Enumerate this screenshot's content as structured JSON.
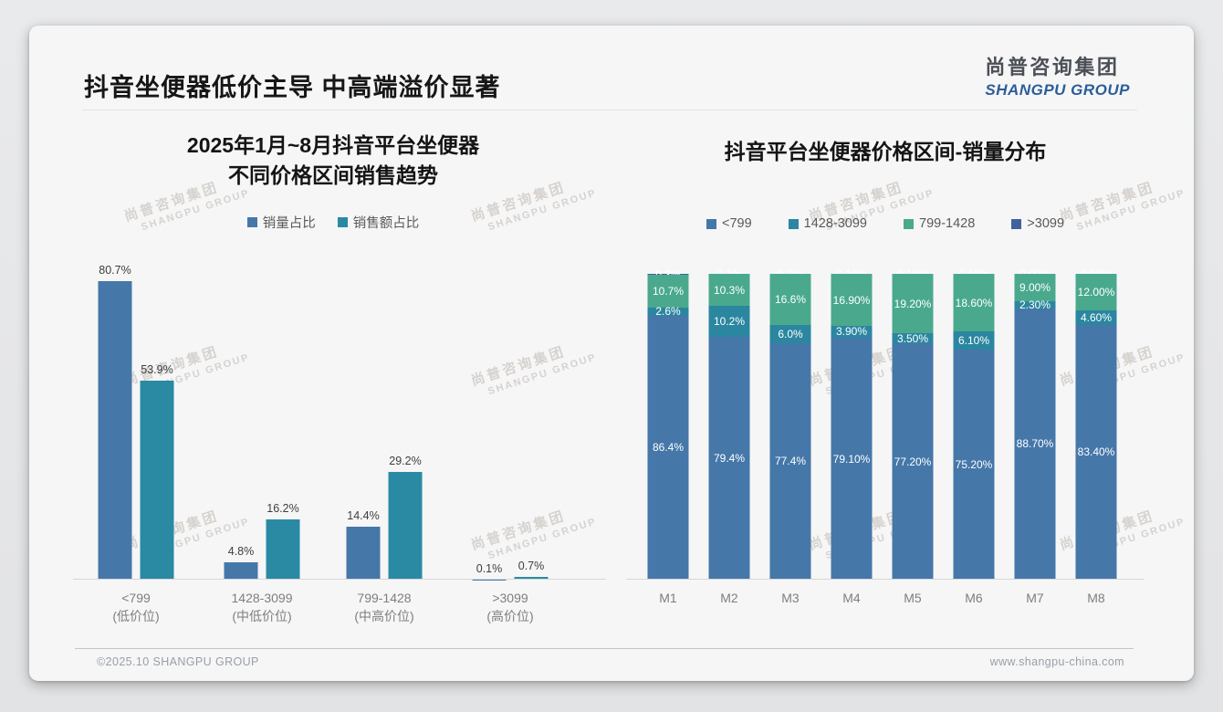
{
  "page": {
    "title": "抖音坐便器低价主导 中高端溢价显著"
  },
  "logo": {
    "cn": "尚普咨询集团",
    "en": "SHANGPU GROUP"
  },
  "watermark": {
    "cn": "尚普咨询集团",
    "en": "SHANGPU GROUP"
  },
  "footer": {
    "left": "©2025.10 SHANGPU GROUP",
    "right": "www.shangpu-china.com"
  },
  "colors": {
    "blue": "#4577a9",
    "teal": "#2a8aa3",
    "stack_teal": "#2b86a0",
    "green": "#4aa98d",
    "indigo": "#41629e",
    "axis": "#d6d6d8",
    "label_dark": "#3e3e3e",
    "label_white": "#ffffff"
  },
  "chart_data": [
    {
      "type": "bar",
      "stacked": false,
      "title": "2025年1月~8月抖音平台坐便器不同价格区间销售趋势",
      "title_lines": [
        "2025年1月~8月抖音平台坐便器",
        "不同价格区间销售趋势"
      ],
      "categories": [
        "<799",
        "1428-3099",
        "799-1428",
        ">3099"
      ],
      "category_sublabels": [
        "(低价位)",
        "(中低价位)",
        "(中高价位)",
        "(高价位)"
      ],
      "series": [
        {
          "name": "销量占比",
          "color": "#4577a9",
          "values": [
            80.7,
            4.8,
            14.4,
            0.1
          ],
          "labels": [
            "80.7%",
            "4.8%",
            "14.4%",
            "0.1%"
          ]
        },
        {
          "name": "销售额占比",
          "color": "#2a8aa3",
          "values": [
            53.9,
            16.2,
            29.2,
            0.7
          ],
          "labels": [
            "53.9%",
            "16.2%",
            "29.2%",
            "0.7%"
          ]
        }
      ],
      "unit": "%",
      "ylim": [
        0,
        100
      ],
      "grid": false,
      "data_labels": true,
      "legend_position": "top"
    },
    {
      "type": "bar",
      "stacked": true,
      "title": "抖音平台坐便器价格区间-销量分布",
      "categories": [
        "M1",
        "M2",
        "M3",
        "M4",
        "M5",
        "M6",
        "M7",
        "M8"
      ],
      "series": [
        {
          "name": "<799",
          "color": "#4577a9",
          "values": [
            86.4,
            79.4,
            77.4,
            79.1,
            77.2,
            75.2,
            88.7,
            83.4
          ],
          "labels": [
            "86.4%",
            "79.4%",
            "77.4%",
            "79.10%",
            "77.20%",
            "75.20%",
            "88.70%",
            "83.40%"
          ]
        },
        {
          "name": "1428-3099",
          "color": "#2b86a0",
          "values": [
            2.6,
            10.2,
            6.0,
            3.9,
            3.5,
            6.1,
            2.3,
            4.6
          ],
          "labels": [
            "2.6%",
            "10.2%",
            "6.0%",
            "3.90%",
            "3.50%",
            "6.10%",
            "2.30%",
            "4.60%"
          ]
        },
        {
          "name": "799-1428",
          "color": "#4aa98d",
          "values": [
            10.7,
            10.3,
            16.6,
            16.9,
            19.2,
            18.6,
            9.0,
            12.0
          ],
          "labels": [
            "10.7%",
            "10.3%",
            "16.6%",
            "16.90%",
            "19.20%",
            "18.60%",
            "9.00%",
            "12.00%"
          ]
        },
        {
          "name": ">3099",
          "color": "#41629e",
          "values": [
            0.3,
            0.1,
            0.1,
            0.1,
            0.1,
            0.1,
            0.0,
            0.0
          ],
          "labels": [
            "0.3%",
            "0.1%",
            "0.1%",
            "0.10%",
            "0.10%",
            "0.10%",
            "0.00%",
            "0.00%"
          ]
        }
      ],
      "unit": "%",
      "ylim": [
        0,
        100
      ],
      "grid": false,
      "data_labels": true,
      "legend_position": "top"
    }
  ]
}
